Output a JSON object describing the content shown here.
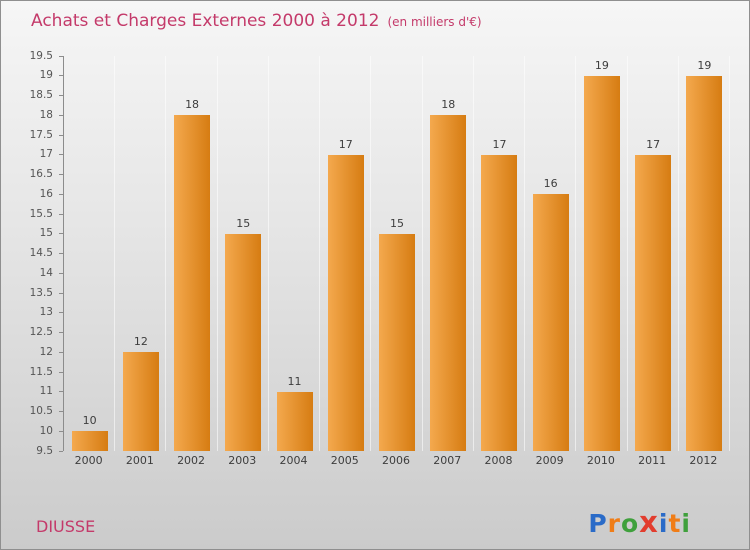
{
  "title": "Achats et Charges Externes 2000 à 2012",
  "subtitle": "(en milliers d'€)",
  "footer": {
    "company": "DIUSSE",
    "logo": [
      {
        "ch": "P",
        "color": "#2a6bc8"
      },
      {
        "ch": "r",
        "color": "#f07d17"
      },
      {
        "ch": "o",
        "color": "#3fa03c"
      },
      {
        "ch": "x",
        "color": "#e23d2e"
      },
      {
        "ch": "i",
        "color": "#2a6bc8"
      },
      {
        "ch": "t",
        "color": "#f07d17"
      },
      {
        "ch": "i",
        "color": "#3fa03c"
      }
    ]
  },
  "colors": {
    "title": "#c43a6a",
    "company": "#c43a6a",
    "bar_light": "#f4a94e",
    "bar_dark": "#d67c12",
    "axis": "#8c8c8c",
    "tick_label": "#555555",
    "value_label": "#3d3d3d",
    "grid_line": "rgba(255,255,255,0.55)"
  },
  "chart_data": {
    "type": "bar",
    "title": "Achats et Charges Externes 2000 à 2012",
    "subtitle": "(en milliers d'€)",
    "categories": [
      "2000",
      "2001",
      "2002",
      "2003",
      "2004",
      "2005",
      "2006",
      "2007",
      "2008",
      "2009",
      "2010",
      "2011",
      "2012"
    ],
    "values": [
      10,
      12,
      18,
      15,
      11,
      17,
      15,
      18,
      17,
      16,
      19,
      17,
      19
    ],
    "xlabel": "",
    "ylabel": "",
    "ylim": [
      9.5,
      19.5
    ],
    "ytick_step": 0.5,
    "grid": true,
    "legend": false,
    "legend_position": "none"
  }
}
